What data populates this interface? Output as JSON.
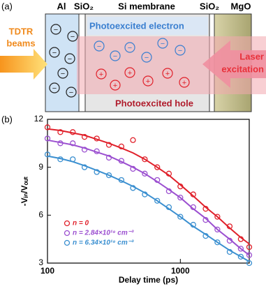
{
  "panel_a": {
    "label": "(a)",
    "layers": [
      "Al",
      "SiO₂",
      "Si membrane",
      "SiO₂",
      "MgO"
    ],
    "electron_label": "Photoexcited electron",
    "hole_label": "Photoexcited hole",
    "probe_label": [
      "TDTR",
      "beams"
    ],
    "pump_label": [
      "Laser",
      "excitation"
    ],
    "electron_symbol": "−",
    "hole_symbol": "+"
  },
  "chart_data": {
    "type": "scatter",
    "panel_label": "(b)",
    "xlabel": "Delay time (ps)",
    "ylabel": "-Vᵢₙ/Vₒᵤₜ",
    "xscale": "log",
    "xlim": [
      100,
      3300
    ],
    "ylim": [
      3,
      12
    ],
    "xticks": [
      100,
      1000
    ],
    "yticks": [
      3,
      6,
      9,
      12
    ],
    "series": [
      {
        "name": "n = 0",
        "color": "#e0202a",
        "x": [
          100,
          125,
          155,
          190,
          235,
          290,
          360,
          440,
          540,
          670,
          820,
          1000,
          1250,
          1550,
          1900,
          2350,
          2850,
          3300
        ],
        "values": [
          11.5,
          11.2,
          11.2,
          10.9,
          10.8,
          10.4,
          10.3,
          10.7,
          9.5,
          9.0,
          8.6,
          7.8,
          7.3,
          6.4,
          5.9,
          5.3,
          4.5,
          4.0
        ],
        "fit": [
          11.4,
          11.3,
          11.15,
          11.0,
          10.75,
          10.5,
          10.2,
          9.9,
          9.5,
          9.0,
          8.5,
          7.9,
          7.2,
          6.5,
          5.9,
          5.2,
          4.6,
          4.2
        ]
      },
      {
        "name": "n = 2.84×10¹⁹ cm⁻³",
        "color": "#9b4fd0",
        "x": [
          100,
          125,
          155,
          190,
          235,
          290,
          360,
          440,
          540,
          670,
          820,
          1000,
          1250,
          1550,
          1900,
          2350,
          2850,
          3300
        ],
        "values": [
          10.8,
          10.5,
          10.5,
          10.1,
          10.0,
          9.6,
          9.4,
          8.9,
          8.6,
          8.2,
          7.5,
          7.1,
          6.5,
          5.7,
          5.1,
          4.4,
          3.9,
          3.5
        ],
        "fit": [
          10.7,
          10.55,
          10.4,
          10.2,
          9.95,
          9.7,
          9.35,
          9.0,
          8.6,
          8.1,
          7.6,
          7.1,
          6.4,
          5.8,
          5.1,
          4.5,
          3.9,
          3.5
        ]
      },
      {
        "name": "n = 6.34×10¹⁹ cm⁻³",
        "color": "#3a8fd0",
        "x": [
          100,
          125,
          155,
          190,
          235,
          290,
          360,
          440,
          540,
          670,
          820,
          1000,
          1250,
          1550,
          1900,
          2350,
          2850,
          3300
        ],
        "values": [
          9.8,
          9.5,
          9.5,
          9.0,
          8.7,
          8.5,
          8.2,
          7.7,
          7.3,
          6.9,
          6.5,
          5.9,
          5.4,
          4.7,
          4.3,
          3.7,
          3.4,
          3.0
        ],
        "fit": [
          9.7,
          9.55,
          9.35,
          9.1,
          8.8,
          8.5,
          8.15,
          7.8,
          7.4,
          6.9,
          6.4,
          5.9,
          5.3,
          4.8,
          4.3,
          3.8,
          3.4,
          3.1
        ]
      }
    ]
  }
}
